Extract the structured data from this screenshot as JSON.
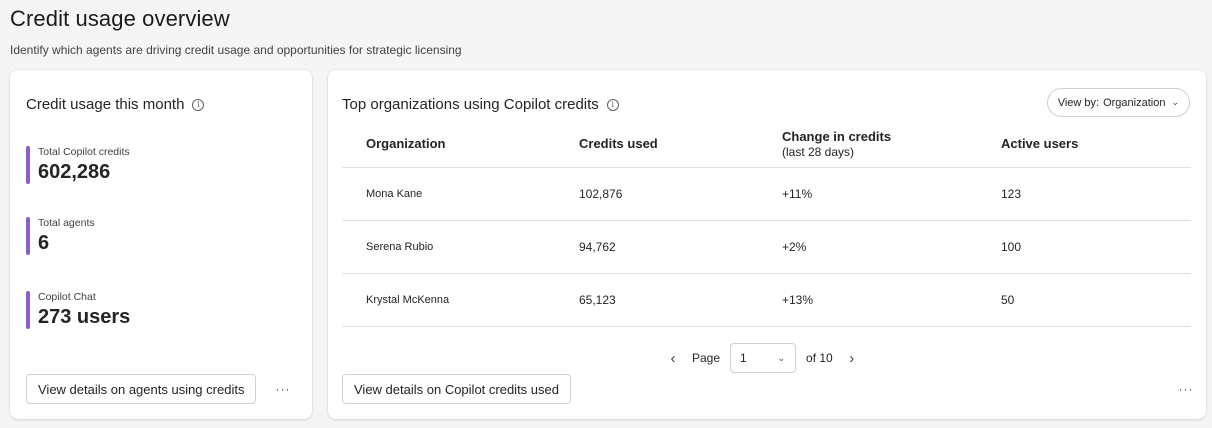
{
  "page": {
    "title": "Credit usage overview",
    "subtitle": "Identify which agents are driving credit usage and opportunities for strategic licensing"
  },
  "left_card": {
    "title": "Credit usage this month",
    "metrics": [
      {
        "label": "Total Copilot credits",
        "value": "602,286"
      },
      {
        "label": "Total agents",
        "value": "6"
      },
      {
        "label": "Copilot Chat",
        "value": "273 users"
      }
    ],
    "accent_color": "#8c5ec7",
    "button_label": "View details on agents using credits",
    "more_icon": "more-horizontal-icon"
  },
  "right_card": {
    "title": "Top organizations using Copilot credits",
    "view_by": {
      "label": "View by:",
      "value": "Organization"
    },
    "table": {
      "headers": [
        "Organization",
        "Credits used",
        "Change in credits",
        "Active users"
      ],
      "header_sub": "(last 28 days)",
      "rows": [
        [
          "Mona Kane",
          "102,876",
          "+11%",
          "123"
        ],
        [
          "Serena Rubio",
          "94,762",
          "+2%",
          "100"
        ],
        [
          "Krystal McKenna",
          "65,123",
          "+13%",
          "50"
        ]
      ]
    },
    "pagination": {
      "label": "Page",
      "current": "1",
      "of": "of 10"
    },
    "button_label": "View details on Copilot credits used",
    "more_icon": "more-horizontal-icon"
  }
}
